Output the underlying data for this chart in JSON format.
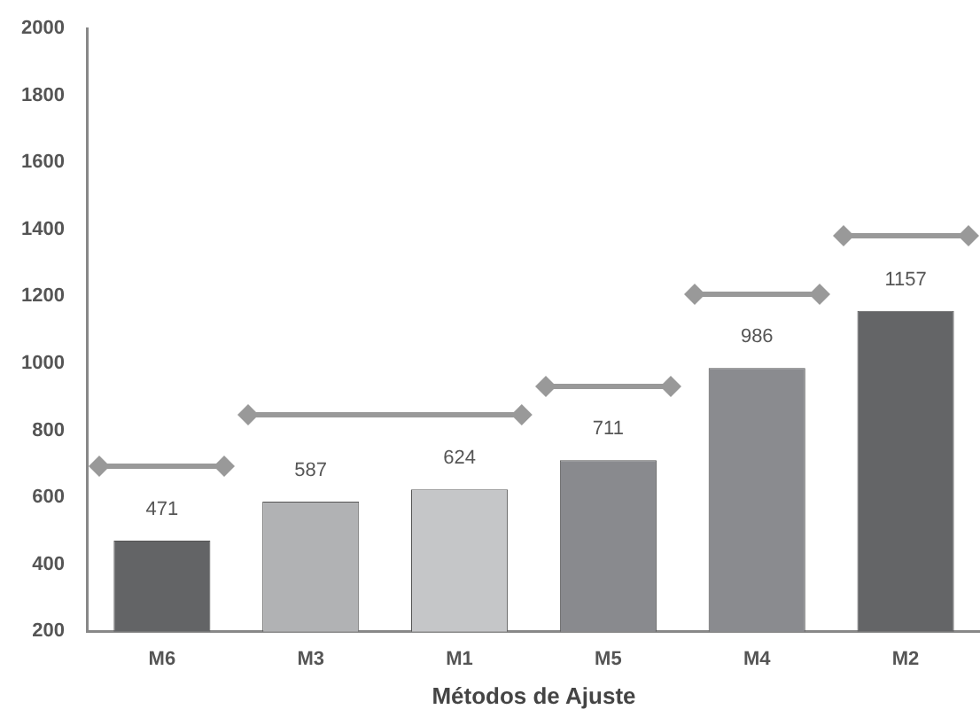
{
  "chart_data": {
    "type": "bar",
    "xlabel": "Métodos de Ajuste",
    "categories": [
      "M6",
      "M3",
      "M1",
      "M5",
      "M4",
      "M2"
    ],
    "values": [
      471,
      587,
      624,
      711,
      986,
      1157
    ],
    "colors": [
      "#636466",
      "#b1b2b4",
      "#c5c6c8",
      "#898a8e",
      "#8a8b8f",
      "#646567"
    ],
    "ylim": [
      200,
      2000
    ],
    "yticks": [
      200,
      400,
      600,
      800,
      1000,
      1200,
      1400,
      1600,
      1800,
      2000
    ],
    "grid": false,
    "legend": false,
    "data_labels": true
  }
}
